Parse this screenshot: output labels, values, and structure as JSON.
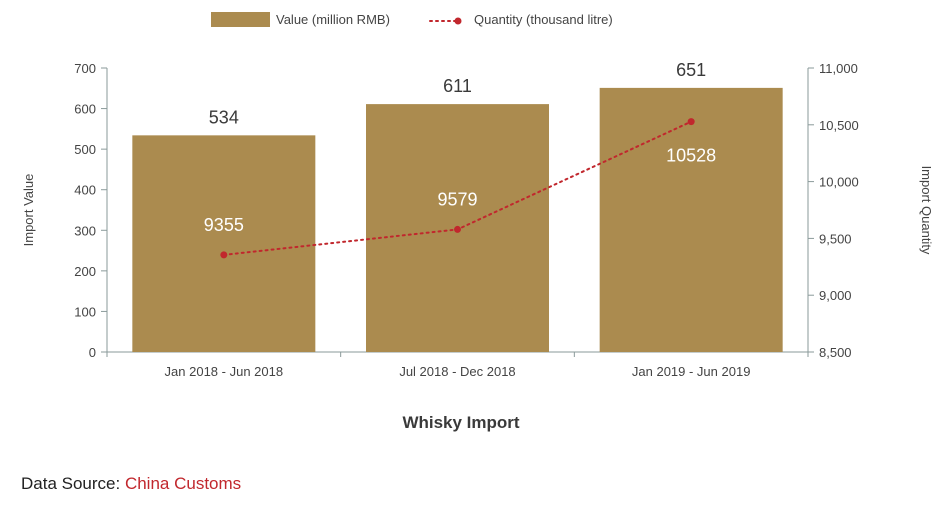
{
  "chart_data": {
    "type": "bar+line",
    "title": "Whisky Import",
    "categories": [
      "Jan 2018 - Jun 2018",
      "Jul 2018 - Dec 2018",
      "Jan 2019 - Jun 2019"
    ],
    "series": [
      {
        "name": "Value (million RMB)",
        "type": "bar",
        "axis": "left",
        "values": [
          534,
          611,
          651
        ],
        "color": "#ab8b4f"
      },
      {
        "name": "Quantity (thousand litre)",
        "type": "line",
        "axis": "right",
        "style": "dotted",
        "values": [
          9355,
          9579,
          10528
        ],
        "color": "#c1272d"
      }
    ],
    "ylabel_left": "Import Value",
    "ylabel_right": "Import Quantity",
    "ylim_left": [
      0,
      700
    ],
    "yticks_left": [
      0,
      100,
      200,
      300,
      400,
      500,
      600,
      700
    ],
    "ylim_right": [
      8500,
      11000
    ],
    "yticks_right": [
      8500,
      9000,
      9500,
      10000,
      10500,
      11000
    ],
    "yticklabels_right": [
      "8,500",
      "9,000",
      "9,500",
      "10,000",
      "10,500",
      "11,000"
    ],
    "grid": false,
    "legend_position": "top"
  },
  "source": {
    "label": "Data Source: ",
    "name": "China Customs"
  }
}
